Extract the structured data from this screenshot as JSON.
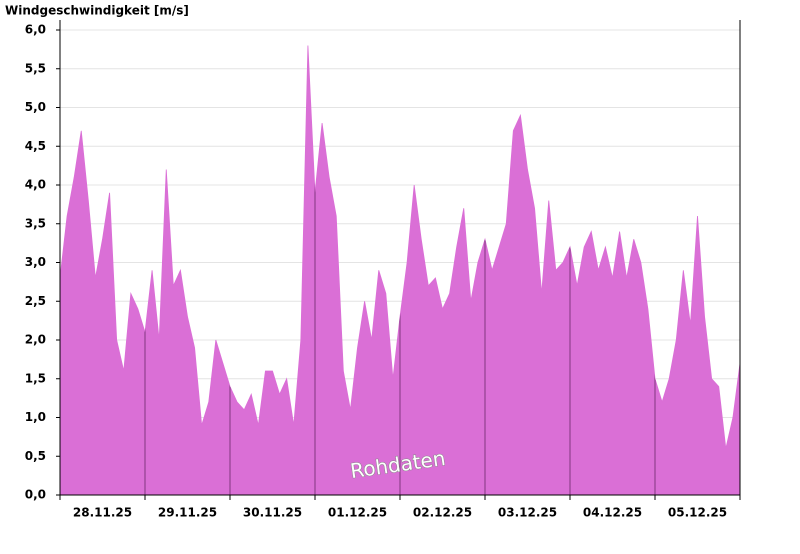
{
  "chart_data": {
    "type": "area",
    "title": "Windgeschwindigkeit [m/s]",
    "annotation": "Rohdaten",
    "color": "#da6fd6",
    "grid": true,
    "categories": [
      null,
      null,
      null,
      null,
      null,
      null,
      "28.11.25",
      null,
      null,
      null,
      null,
      null,
      null,
      null,
      null,
      null,
      null,
      null,
      "29.11.25",
      null,
      null,
      null,
      null,
      null,
      null,
      null,
      null,
      null,
      null,
      null,
      "30.11.25",
      null,
      null,
      null,
      null,
      null,
      null,
      null,
      null,
      null,
      null,
      null,
      "01.12.25",
      null,
      null,
      null,
      null,
      null,
      null,
      null,
      null,
      null,
      null,
      null,
      "02.12.25",
      null,
      null,
      null,
      null,
      null,
      null,
      null,
      null,
      null,
      null,
      null,
      "03.12.25",
      null,
      null,
      null,
      null,
      null,
      null,
      null,
      null,
      null,
      null,
      null,
      "04.12.25",
      null,
      null,
      null,
      null,
      null,
      null,
      null,
      null,
      null,
      null,
      null,
      "05.12.25",
      null,
      null,
      null,
      null,
      null,
      null
    ],
    "values": [
      2.8,
      3.6,
      4.1,
      4.7,
      3.8,
      2.8,
      3.3,
      3.9,
      2.0,
      1.6,
      2.6,
      2.4,
      2.1,
      2.9,
      2.0,
      4.2,
      2.7,
      2.9,
      2.3,
      1.9,
      0.9,
      1.2,
      2.0,
      1.7,
      1.4,
      1.2,
      1.1,
      1.3,
      0.9,
      1.6,
      1.6,
      1.3,
      1.5,
      0.9,
      2.0,
      5.8,
      3.9,
      4.8,
      4.1,
      3.6,
      1.6,
      1.1,
      1.9,
      2.5,
      2.0,
      2.9,
      2.6,
      1.5,
      2.3,
      3.0,
      4.0,
      3.3,
      2.7,
      2.8,
      2.4,
      2.6,
      3.2,
      3.7,
      2.5,
      3.0,
      3.3,
      2.9,
      3.2,
      3.5,
      4.7,
      4.9,
      4.2,
      3.7,
      2.6,
      3.8,
      2.9,
      3.0,
      3.2,
      2.7,
      3.2,
      3.4,
      2.9,
      3.2,
      2.8,
      3.4,
      2.8,
      3.3,
      3.0,
      2.4,
      1.5,
      1.2,
      1.5,
      2.0,
      2.9,
      2.2,
      3.6,
      2.3,
      1.5,
      1.4,
      0.6,
      1.0,
      1.7
    ],
    "ylim": [
      0,
      6
    ],
    "yticks": [
      {
        "value": 0,
        "label": "0,0"
      },
      {
        "value": 0.5,
        "label": "0,5"
      },
      {
        "value": 1,
        "label": "1,0"
      },
      {
        "value": 1.5,
        "label": "1,5"
      },
      {
        "value": 2,
        "label": "2,0"
      },
      {
        "value": 2.5,
        "label": "2,5"
      },
      {
        "value": 3,
        "label": "3,0"
      },
      {
        "value": 3.5,
        "label": "3,5"
      },
      {
        "value": 4,
        "label": "4,0"
      },
      {
        "value": 4.5,
        "label": "4,5"
      },
      {
        "value": 5,
        "label": "5,0"
      },
      {
        "value": 5.5,
        "label": "5,5"
      },
      {
        "value": 6,
        "label": "6,0"
      }
    ]
  }
}
